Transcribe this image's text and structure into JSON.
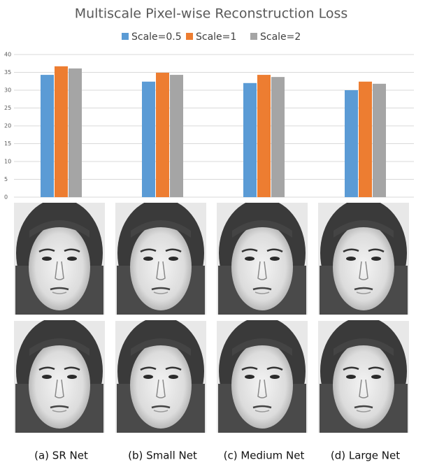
{
  "chart_data": {
    "type": "bar",
    "title": "Multiscale Pixel-wise Reconstruction Loss",
    "categories": [
      "(a) SR Net",
      "(b) Small Net",
      "(c) Medium Net",
      "(d) Large Net"
    ],
    "series": [
      {
        "name": "Scale=0.5",
        "color": "#5b9bd5",
        "values": [
          34.3,
          32.4,
          32.0,
          30.0
        ]
      },
      {
        "name": "Scale=1",
        "color": "#ed7d31",
        "values": [
          36.7,
          34.9,
          34.3,
          32.4
        ]
      },
      {
        "name": "Scale=2",
        "color": "#a5a5a5",
        "values": [
          36.1,
          34.3,
          33.7,
          31.8
        ]
      }
    ],
    "ylim": [
      0,
      40
    ],
    "yticks": [
      0,
      5,
      10,
      15,
      20,
      25,
      30,
      35,
      40
    ],
    "grid": true,
    "legend": "top"
  }
}
